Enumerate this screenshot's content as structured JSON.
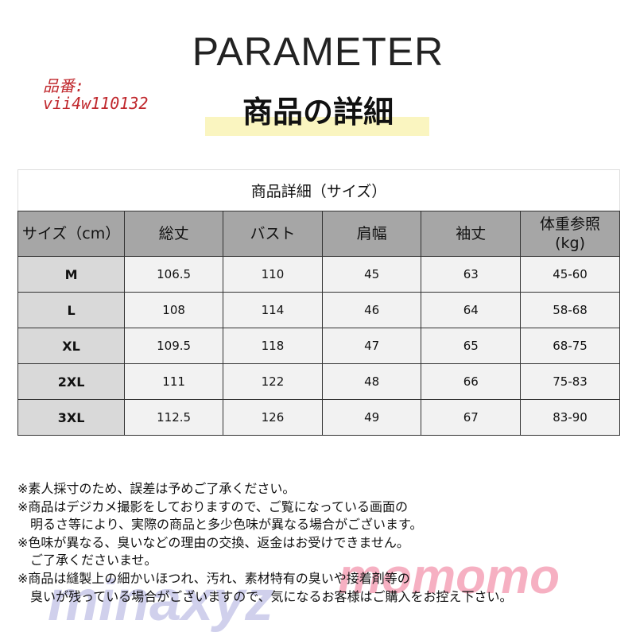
{
  "header": {
    "title": "PARAMETER",
    "subtitle": "商品の詳細",
    "code_label": "品番:",
    "code": "vii4w110132"
  },
  "table": {
    "title": "商品詳細（サイズ）",
    "columns": [
      "サイズ（cm）",
      "総丈",
      "バスト",
      "肩幅",
      "袖丈",
      "体重参照\n(kg)"
    ],
    "rows": [
      [
        "M",
        "106.5",
        "110",
        "45",
        "63",
        "45-60"
      ],
      [
        "L",
        "108",
        "114",
        "46",
        "64",
        "58-68"
      ],
      [
        "XL",
        "109.5",
        "118",
        "47",
        "65",
        "68-75"
      ],
      [
        "2XL",
        "111",
        "122",
        "48",
        "66",
        "75-83"
      ],
      [
        "3XL",
        "112.5",
        "126",
        "49",
        "67",
        "83-90"
      ]
    ]
  },
  "notes": [
    "※素人採寸のため、誤差は予めご了承ください。",
    "※商品はデジカメ撮影をしておりますので、ご覧になっている画面の",
    "　明るさ等により、実際の商品と多少色味が異なる場合がございます。",
    "※色味が異なる、臭いなどの理由の交換、返金はお受けできません。",
    "　ご了承くださいませ。",
    "※商品は縫製上の細かいほつれ、汚れ、素材特有の臭いや接着剤等の",
    "　臭いが残っている場合がございますので、気になるお客様はご購入をお控え下さい。"
  ],
  "watermarks": [
    "minaxyz",
    "momomo"
  ]
}
